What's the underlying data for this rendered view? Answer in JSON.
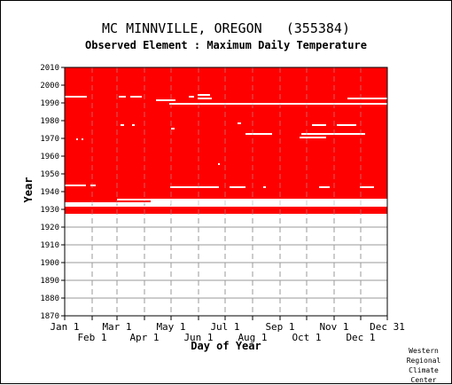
{
  "chart_data": {
    "type": "heatmap",
    "title": "MC MINNVILLE, OREGON   (355384)",
    "subtitle": "Observed Element : Maximum Daily Temperature",
    "xlabel": "Day of Year",
    "ylabel": "Year",
    "ylim": [
      1870,
      2010
    ],
    "xlim": [
      1,
      365
    ],
    "y_ticks": [
      1870,
      1880,
      1890,
      1900,
      1910,
      1920,
      1930,
      1940,
      1950,
      1960,
      1970,
      1980,
      1990,
      2000,
      2010
    ],
    "x_ticks_upper": [
      {
        "label": "Jan 1",
        "day": 1
      },
      {
        "label": "Mar 1",
        "day": 60
      },
      {
        "label": "May 1",
        "day": 121
      },
      {
        "label": "Jul 1",
        "day": 182
      },
      {
        "label": "Sep 1",
        "day": 244
      },
      {
        "label": "Nov 1",
        "day": 305
      },
      {
        "label": "Dec 31",
        "day": 365
      }
    ],
    "x_ticks_lower": [
      {
        "label": "Feb 1",
        "day": 32
      },
      {
        "label": "Apr 1",
        "day": 91
      },
      {
        "label": "Jun 1",
        "day": 152
      },
      {
        "label": "Aug 1",
        "day": 213
      },
      {
        "label": "Oct 1",
        "day": 274
      },
      {
        "label": "Dec 1",
        "day": 335
      }
    ],
    "grid": true,
    "observed_color": "#ff0000",
    "missing_color": "#ffffff",
    "observed_blocks": [
      {
        "year_start": 1927.5,
        "year_end": 1931.5,
        "day_start": 1,
        "day_end": 365
      },
      {
        "year_start": 1934.0,
        "year_end": 2010.0,
        "day_start": 1,
        "day_end": 365
      }
    ],
    "missing_segments": [
      {
        "year": 1933,
        "day_start": 1,
        "day_end": 365
      },
      {
        "year": 1932,
        "day_start": 121,
        "day_end": 365
      },
      {
        "year": 1934,
        "day_start": 98,
        "day_end": 365
      },
      {
        "year": 1935,
        "day_start": 60,
        "day_end": 365
      },
      {
        "year": 1942,
        "day_start": 120,
        "day_end": 175
      },
      {
        "year": 1942,
        "day_start": 187,
        "day_end": 205
      },
      {
        "year": 1942,
        "day_start": 225,
        "day_end": 228
      },
      {
        "year": 1942,
        "day_start": 288,
        "day_end": 300
      },
      {
        "year": 1942,
        "day_start": 334,
        "day_end": 350
      },
      {
        "year": 1943,
        "day_start": 1,
        "day_end": 25
      },
      {
        "year": 1943,
        "day_start": 30,
        "day_end": 36
      },
      {
        "year": 1970,
        "day_start": 266,
        "day_end": 296
      },
      {
        "year": 1972,
        "day_start": 205,
        "day_end": 235
      },
      {
        "year": 1972,
        "day_start": 268,
        "day_end": 340
      },
      {
        "year": 1977,
        "day_start": 280,
        "day_end": 296
      },
      {
        "year": 1977,
        "day_start": 308,
        "day_end": 330
      },
      {
        "year": 1989,
        "day_start": 119,
        "day_end": 365
      },
      {
        "year": 1991,
        "day_start": 104,
        "day_end": 126
      },
      {
        "year": 1992,
        "day_start": 151,
        "day_end": 167
      },
      {
        "year": 1993,
        "day_start": 1,
        "day_end": 26
      },
      {
        "year": 1993,
        "day_start": 62,
        "day_end": 70
      },
      {
        "year": 1993,
        "day_start": 75,
        "day_end": 88
      },
      {
        "year": 1993,
        "day_start": 141,
        "day_end": 147
      },
      {
        "year": 1994,
        "day_start": 151,
        "day_end": 165
      },
      {
        "year": 1992,
        "day_start": 320,
        "day_end": 365
      },
      {
        "year": 1977,
        "day_start": 64,
        "day_end": 68
      },
      {
        "year": 1977,
        "day_start": 77,
        "day_end": 80
      },
      {
        "year": 1975,
        "day_start": 121,
        "day_end": 125
      },
      {
        "year": 1978,
        "day_start": 196,
        "day_end": 200
      },
      {
        "year": 1969,
        "day_start": 14,
        "day_end": 16
      },
      {
        "year": 1969,
        "day_start": 20,
        "day_end": 22
      },
      {
        "year": 1955,
        "day_start": 174,
        "day_end": 176
      }
    ]
  }
}
